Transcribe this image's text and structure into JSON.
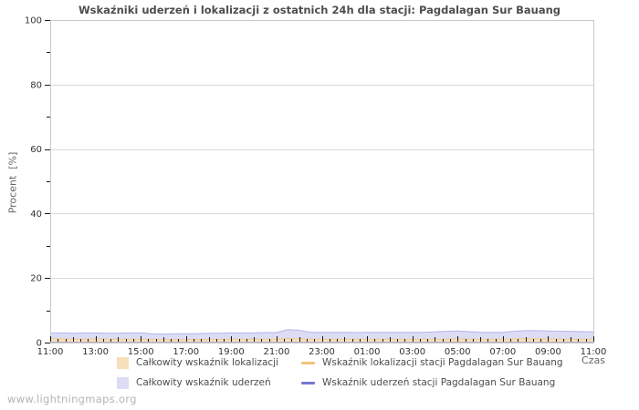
{
  "title": "Wskaźniki uderzeń i lokalizacji z ostatnich 24h dla stacji: Pagdalagan Sur Bauang",
  "y_axis_title": "Procent  [%]",
  "x_axis_title": "Czas",
  "watermark": "www.lightningmaps.org",
  "colors": {
    "total_location_fill": "#f6dfba",
    "total_location_edge": "#e9c99d",
    "total_strike_fill": "#dcddf5",
    "total_strike_edge": "#b3b5e8",
    "station_location_line": "#f2c479",
    "station_strike_line": "#7678d2",
    "grid": "#d9d9d9",
    "plot_border": "#c9c9c9",
    "tick": "#1a1a1a"
  },
  "legend": {
    "items": [
      {
        "label": "Całkowity wskaźnik lokalizacji",
        "swatch": "area",
        "color": "#f6dfba"
      },
      {
        "label": "Całkowity wskaźnik uderzeń",
        "swatch": "area",
        "color": "#dcddf5"
      },
      {
        "label": "Wskaźnik lokalizacji stacji Pagdalagan Sur Bauang",
        "swatch": "line",
        "color": "#f2c479"
      },
      {
        "label": "Wskaźnik uderzeń stacji Pagdalagan Sur Bauang",
        "swatch": "line",
        "color": "#7678d2"
      }
    ]
  },
  "chart_data": {
    "type": "area",
    "title": "Wskaźniki uderzeń i lokalizacji z ostatnich 24h dla stacji: Pagdalagan Sur Bauang",
    "xlabel": "Czas",
    "ylabel": "Procent [%]",
    "ylim": [
      0,
      100
    ],
    "x_hours_span": 24,
    "grid": "horizontal-major",
    "legend_position": "bottom",
    "x_tick_labels": [
      "11:00",
      "13:00",
      "15:00",
      "17:00",
      "19:00",
      "21:00",
      "23:00",
      "01:00",
      "03:00",
      "05:00",
      "07:00",
      "09:00",
      "11:00"
    ],
    "y_tick_values": [
      0,
      20,
      40,
      60,
      80,
      100
    ],
    "y_minor_tick_values": [
      10,
      30,
      50,
      70,
      90
    ],
    "x_minor_tick_minutes": 20,
    "sample_interval_minutes": 30,
    "series": [
      {
        "name": "Całkowity wskaźnik uderzeń",
        "type": "area",
        "fill": "#dcddf5",
        "stroke": "#b3b5e8",
        "values": [
          3.0,
          3.0,
          2.9,
          3.0,
          3.0,
          2.9,
          2.9,
          3.0,
          3.0,
          2.7,
          2.6,
          2.7,
          2.7,
          2.8,
          2.9,
          2.9,
          3.0,
          3.0,
          3.0,
          3.1,
          3.1,
          4.0,
          3.8,
          3.2,
          3.2,
          3.2,
          3.2,
          3.1,
          3.2,
          3.2,
          3.2,
          3.2,
          3.2,
          3.2,
          3.3,
          3.5,
          3.6,
          3.4,
          3.2,
          3.2,
          3.2,
          3.5,
          3.7,
          3.7,
          3.6,
          3.5,
          3.5,
          3.4,
          3.3
        ]
      },
      {
        "name": "Całkowity wskaźnik lokalizacji",
        "type": "area",
        "fill": "#f6dfba",
        "stroke": "#e9c99d",
        "values": [
          1.2,
          1.2,
          1.1,
          1.1,
          1.2,
          1.1,
          1.1,
          1.1,
          1.1,
          1.0,
          0.9,
          0.9,
          0.9,
          1.0,
          1.0,
          1.0,
          1.1,
          1.1,
          1.1,
          1.1,
          1.1,
          1.3,
          1.2,
          1.1,
          1.1,
          1.1,
          1.1,
          1.1,
          1.1,
          1.1,
          1.1,
          1.1,
          1.1,
          1.1,
          1.1,
          1.1,
          1.2,
          1.1,
          1.1,
          1.1,
          1.1,
          1.2,
          1.2,
          1.2,
          1.2,
          1.1,
          1.1,
          1.1,
          1.1
        ]
      },
      {
        "name": "Wskaźnik lokalizacji stacji Pagdalagan Sur Bauang",
        "type": "line",
        "stroke": "#f2c479",
        "values": [
          0,
          0,
          0,
          0,
          0,
          0,
          0,
          0,
          0,
          0,
          0,
          0,
          0,
          0,
          0,
          0,
          0,
          0,
          0,
          0,
          0,
          0,
          0,
          0,
          0,
          0,
          0,
          0,
          0,
          0,
          0,
          0,
          0,
          0,
          0,
          0,
          0,
          0,
          0,
          0,
          0,
          0,
          0,
          0,
          0,
          0,
          0,
          0,
          0
        ]
      },
      {
        "name": "Wskaźnik uderzeń stacji Pagdalagan Sur Bauang",
        "type": "line",
        "stroke": "#7678d2",
        "values": [
          0,
          0,
          0,
          0,
          0,
          0,
          0,
          0,
          0,
          0,
          0,
          0,
          0,
          0,
          0,
          0,
          0,
          0,
          0,
          0,
          0,
          0,
          0,
          0,
          0,
          0,
          0,
          0,
          0,
          0,
          0,
          0,
          0,
          0,
          0,
          0,
          0,
          0,
          0,
          0,
          0,
          0,
          0,
          0,
          0,
          0,
          0,
          0,
          0
        ]
      }
    ]
  }
}
